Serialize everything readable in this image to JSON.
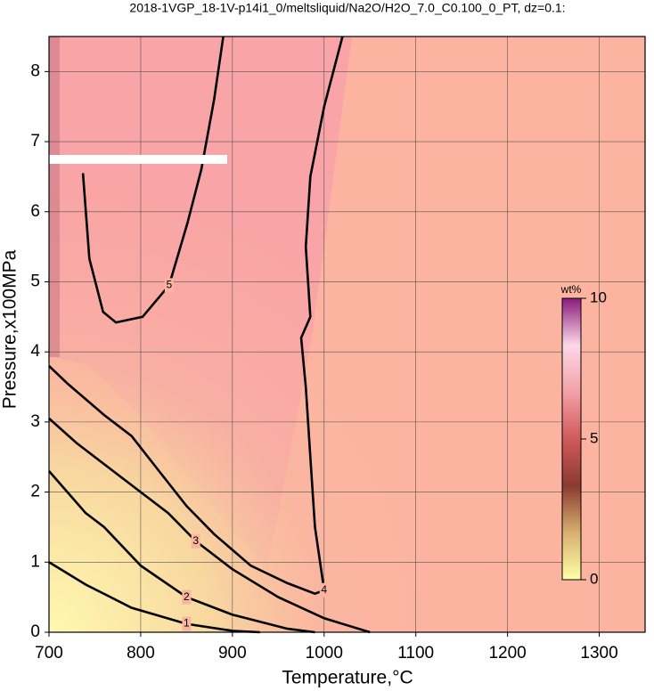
{
  "chart_data": {
    "type": "contour",
    "title": "2018-1VGP_18-1V-p14i1_0/meltsliquid/Na2O/H2O_7.0_C0.100_0_PT, dz=0.1:",
    "xlabel": "Temperature,°C",
    "ylabel": "Pressure,x100MPa",
    "xlim": [
      700,
      1350
    ],
    "ylim": [
      0,
      8.5
    ],
    "xticks": [
      700,
      800,
      900,
      1000,
      1100,
      1200,
      1300
    ],
    "yticks": [
      0,
      1,
      2,
      3,
      4,
      5,
      6,
      7,
      8
    ],
    "grid": true,
    "contours": [
      {
        "level": 1,
        "x": [
          700,
          740,
          790,
          850,
          900,
          930
        ],
        "y": [
          1.0,
          0.68,
          0.35,
          0.12,
          0.02,
          0
        ]
      },
      {
        "level": 2,
        "x": [
          700,
          740,
          760,
          800,
          850,
          900,
          960,
          990
        ],
        "y": [
          2.3,
          1.7,
          1.5,
          0.95,
          0.5,
          0.25,
          0.05,
          0
        ]
      },
      {
        "level": 3,
        "x": [
          700,
          730,
          770,
          800,
          830,
          860,
          900,
          950,
          1000,
          1050
        ],
        "y": [
          3.05,
          2.7,
          2.3,
          2.0,
          1.7,
          1.3,
          0.9,
          0.5,
          0.2,
          0
        ]
      },
      {
        "level": 4,
        "x": [
          700,
          720,
          760,
          790,
          820,
          850,
          880,
          920,
          960,
          990,
          1000,
          990,
          985,
          980,
          975,
          985,
          980,
          985,
          1000,
          1020
        ],
        "y": [
          3.8,
          3.55,
          3.1,
          2.8,
          2.3,
          1.8,
          1.4,
          0.95,
          0.7,
          0.55,
          0.6,
          1.5,
          2.5,
          3.5,
          4.2,
          4.5,
          5.5,
          6.5,
          7.5,
          8.5
        ]
      },
      {
        "level": 5,
        "x": [
          737,
          744,
          759,
          773,
          802,
          831,
          851,
          866,
          880,
          890
        ],
        "y": [
          6.55,
          5.33,
          4.57,
          4.42,
          4.5,
          4.95,
          5.84,
          6.6,
          7.6,
          8.5
        ]
      }
    ],
    "colorbar": {
      "label": "wt%",
      "lim": [
        0,
        10
      ],
      "ticks": [
        0,
        5,
        10
      ],
      "colors": [
        "#ffffa8",
        "#d8b070",
        "#8a3a30",
        "#d05a5a",
        "#f4a0a8",
        "#fcd8e8",
        "#8a1a7a"
      ]
    }
  }
}
